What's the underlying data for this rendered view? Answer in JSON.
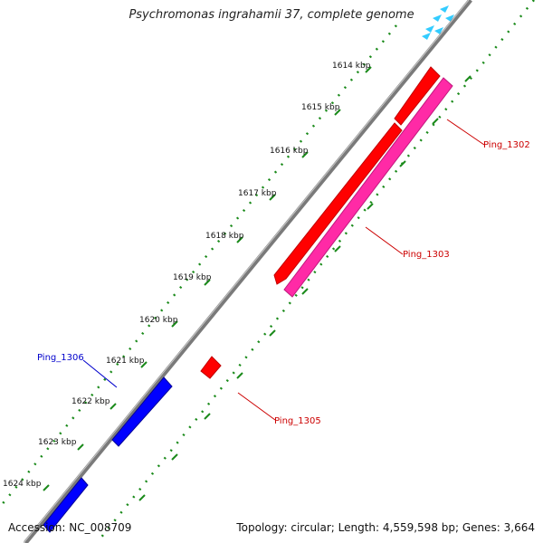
{
  "title": "Psychromonas ingrahamii 37, complete genome",
  "accession": "Accession: NC_008709",
  "summary": "Topology: circular; Length: 4,559,598 bp; Genes: 3,664",
  "ticks": [
    "1614 kbp",
    "1615 kbp",
    "1616 kbp",
    "1617 kbp",
    "1618 kbp",
    "1619 kbp",
    "1620 kbp",
    "1621 kbp",
    "1622 kbp",
    "1623 kbp",
    "1624 kbp"
  ],
  "gene_labels": [
    {
      "text": "Ping_1302",
      "color": "#cc0000"
    },
    {
      "text": "Ping_1303",
      "color": "#cc0000"
    },
    {
      "text": "Ping_1305",
      "color": "#cc0000"
    },
    {
      "text": "Ping_1306",
      "color": "#0000cc"
    }
  ],
  "colors": {
    "forward_gene": "#ff0000",
    "forward_gene_2": "#ff2aa6",
    "reverse_gene": "#0000ff",
    "tick_dots": "#1a8a1a",
    "backbone": "#808080",
    "small_feature": "#33ccff"
  }
}
